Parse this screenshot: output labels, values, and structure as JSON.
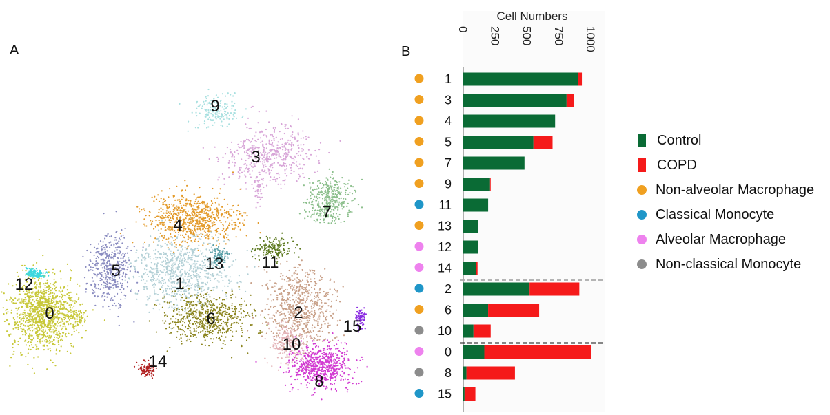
{
  "panel_a": {
    "letter": "A",
    "cluster_labels": [
      "9",
      "3",
      "7",
      "4",
      "5",
      "13",
      "11",
      "12",
      "1",
      "0",
      "6",
      "2",
      "15",
      "10",
      "14",
      "8"
    ],
    "cluster_colors": {
      "0": "#c8c83a",
      "1": "#b3d0d6",
      "2": "#c8a088",
      "3": "#d8a6d8",
      "4": "#e39a2a",
      "5": "#8a8cc0",
      "6": "#8c8520",
      "7": "#8cbf8c",
      "8": "#d23bd2",
      "9": "#a8e0e0",
      "10": "#e3b3b8",
      "11": "#5e7a20",
      "12": "#3ad8e0",
      "13": "#5aa0a8",
      "14": "#b22222",
      "15": "#8a2be2"
    }
  },
  "panel_b": {
    "letter": "B"
  },
  "chart_data": {
    "type": "bar",
    "orientation": "horizontal",
    "stacked": true,
    "xlabel": "Cell Numbers",
    "ylabel": "",
    "xlim": [
      0,
      1000
    ],
    "x_ticks": [
      "0",
      "250",
      "500",
      "750",
      "1000"
    ],
    "categories": [
      "1",
      "3",
      "4",
      "5",
      "7",
      "9",
      "11",
      "13",
      "12",
      "14",
      "2",
      "6",
      "10",
      "0",
      "8",
      "15"
    ],
    "cell_types": [
      "Non-alveolar Macrophage",
      "Non-alveolar Macrophage",
      "Non-alveolar Macrophage",
      "Non-alveolar Macrophage",
      "Non-alveolar Macrophage",
      "Non-alveolar Macrophage",
      "Classical Monocyte",
      "Non-alveolar Macrophage",
      "Alveolar Macrophage",
      "Alveolar Macrophage",
      "Classical Monocyte",
      "Non-alveolar Macrophage",
      "Non-classical Monocyte",
      "Alveolar Macrophage",
      "Non-classical Monocyte",
      "Classical Monocyte"
    ],
    "series": [
      {
        "name": "Control",
        "color": "#0a6b35",
        "values": [
          900,
          810,
          720,
          550,
          480,
          210,
          195,
          115,
          115,
          100,
          520,
          195,
          80,
          165,
          25,
          10
        ]
      },
      {
        "name": "COPD",
        "color": "#f51a1a",
        "values": [
          30,
          55,
          0,
          150,
          0,
          5,
          0,
          0,
          3,
          12,
          390,
          400,
          135,
          840,
          380,
          85
        ]
      }
    ],
    "group_separators": [
      {
        "after": "14",
        "style": "dashed-gray"
      },
      {
        "after": "10",
        "style": "dashed-black"
      }
    ]
  },
  "legend": {
    "items": [
      {
        "label": "Control",
        "shape": "bar",
        "color": "#0a6b35"
      },
      {
        "label": "COPD",
        "shape": "bar",
        "color": "#f51a1a"
      },
      {
        "label": "Non-alveolar Macrophage",
        "shape": "dot",
        "color": "#f0a020"
      },
      {
        "label": "Classical Monocyte",
        "shape": "dot",
        "color": "#1f96c8"
      },
      {
        "label": "Alveolar Macrophage",
        "shape": "dot",
        "color": "#ee82ee"
      },
      {
        "label": "Non-classical Monocyte",
        "shape": "dot",
        "color": "#8c8c8c"
      }
    ]
  }
}
